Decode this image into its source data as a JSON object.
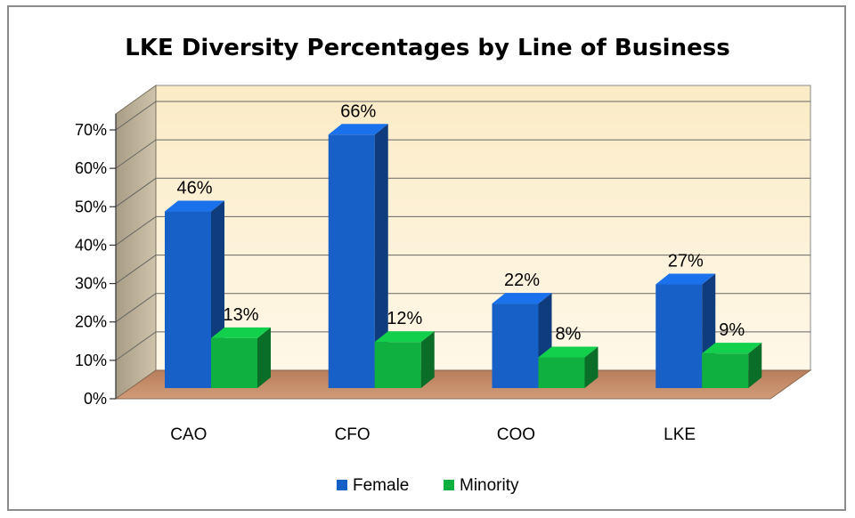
{
  "chart_data": {
    "type": "bar",
    "title": "LKE Diversity Percentages by Line of Business",
    "categories": [
      "CAO",
      "CFO",
      "COO",
      "LKE"
    ],
    "series": [
      {
        "name": "Female",
        "values": [
          46,
          66,
          22,
          27
        ],
        "labels": [
          "46%",
          "66%",
          "22%",
          "27%"
        ],
        "color": "#1660C8"
      },
      {
        "name": "Minority",
        "values": [
          13,
          12,
          8,
          9
        ],
        "labels": [
          "13%",
          "12%",
          "8%",
          "9%"
        ],
        "color": "#10B040"
      }
    ],
    "y_ticks": [
      "0%",
      "10%",
      "20%",
      "30%",
      "40%",
      "50%",
      "60%",
      "70%"
    ],
    "ylim": [
      0,
      70
    ],
    "grid": true,
    "legend_position": "bottom",
    "colors": {
      "wall": "#FBEFCF",
      "side_wall": "#B8AC94",
      "floor": "#C68A66",
      "gridline": "#555555"
    }
  }
}
